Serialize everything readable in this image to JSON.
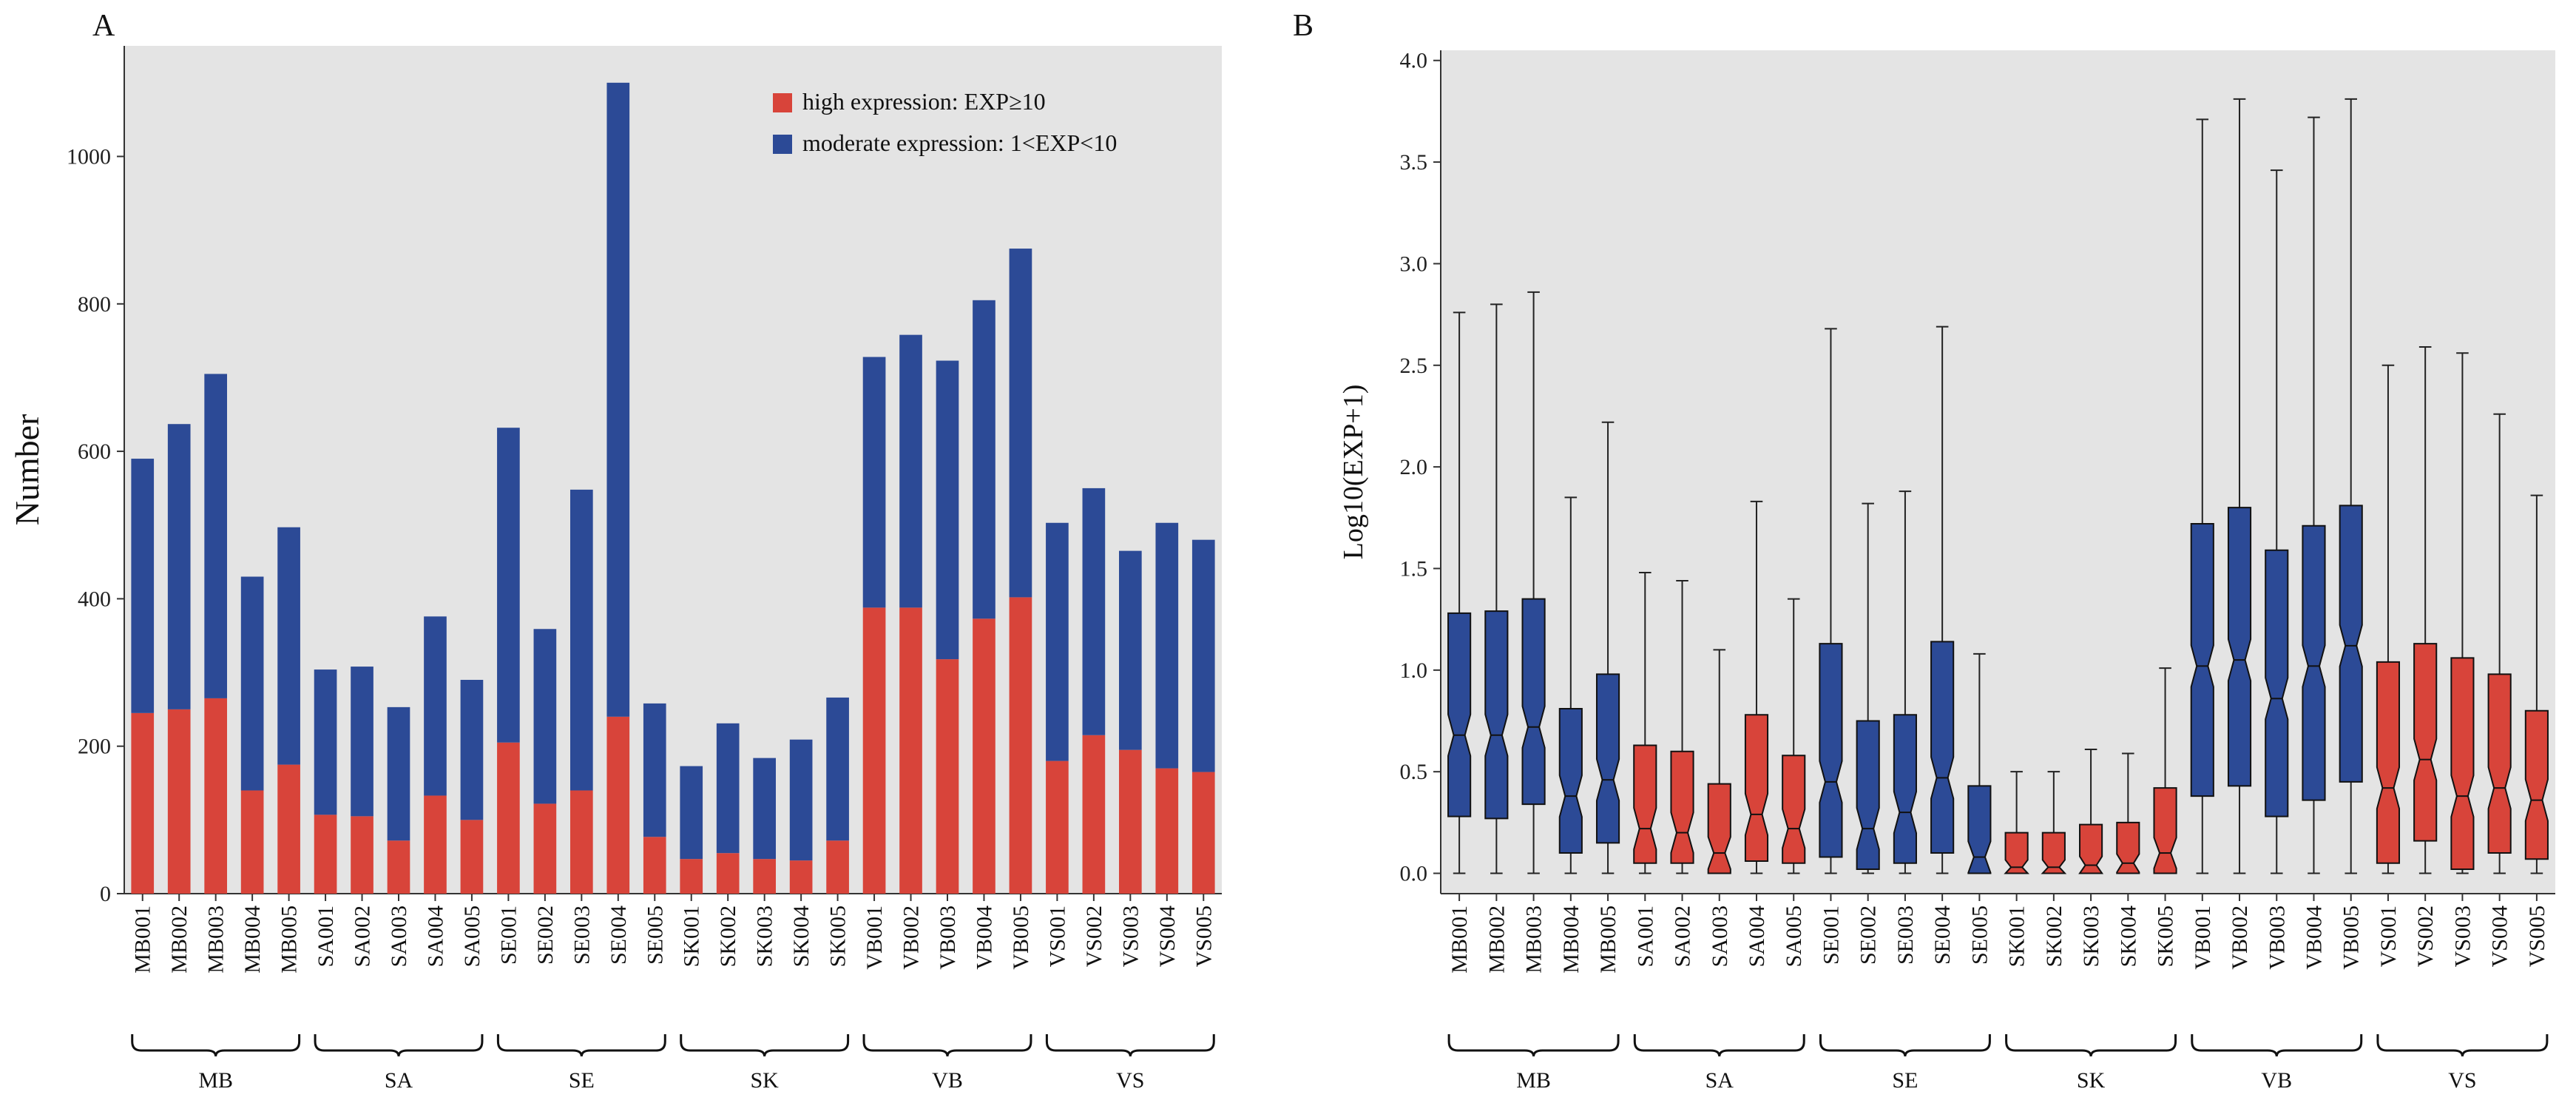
{
  "chart_data": [
    {
      "panel": "A",
      "type": "bar",
      "stacked": true,
      "ylabel": "Number",
      "xlabel": "",
      "ylim": [
        0,
        1150
      ],
      "yticks": [
        0,
        200,
        400,
        600,
        800,
        1000
      ],
      "grid": false,
      "legend_position": "top-right",
      "categories": [
        "MB001",
        "MB002",
        "MB003",
        "MB004",
        "MB005",
        "SA001",
        "SA002",
        "SA003",
        "SA004",
        "SA005",
        "SE001",
        "SE002",
        "SE003",
        "SE004",
        "SE005",
        "SK001",
        "SK002",
        "SK003",
        "SK004",
        "SK005",
        "VB001",
        "VB002",
        "VB003",
        "VB004",
        "VB005",
        "VS001",
        "VS002",
        "VS003",
        "VS004",
        "VS005"
      ],
      "groups": [
        {
          "label": "MB",
          "size": 5
        },
        {
          "label": "SA",
          "size": 5
        },
        {
          "label": "SE",
          "size": 5
        },
        {
          "label": "SK",
          "size": 5
        },
        {
          "label": "VB",
          "size": 5
        },
        {
          "label": "VS",
          "size": 5
        }
      ],
      "series": [
        {
          "name": "high expression: EXP≥10",
          "color": "#d8443a",
          "values": [
            245,
            250,
            265,
            140,
            175,
            107,
            105,
            72,
            133,
            100,
            205,
            122,
            140,
            240,
            77,
            47,
            55,
            47,
            45,
            72,
            388,
            388,
            318,
            373,
            402,
            180,
            215,
            195,
            170,
            165
          ]
        },
        {
          "name": "moderate expression: 1<EXP<10",
          "color": "#2c4a96",
          "values": [
            345,
            387,
            440,
            290,
            322,
            197,
            203,
            181,
            243,
            190,
            427,
            237,
            408,
            860,
            181,
            126,
            176,
            137,
            164,
            194,
            340,
            370,
            405,
            432,
            473,
            323,
            335,
            270,
            333,
            315
          ]
        }
      ]
    },
    {
      "panel": "B",
      "type": "box",
      "ylabel": "Log10(EXP+1)",
      "xlabel": "",
      "ylim": [
        -0.1,
        4.05
      ],
      "yticks": [
        0.0,
        0.5,
        1.0,
        1.5,
        2.0,
        2.5,
        3.0,
        3.5,
        4.0
      ],
      "ytick_labels": [
        "0.0",
        "0.5",
        "1.0",
        "1.5",
        "2.0",
        "2.5",
        "3.0",
        "3.5",
        "4.0"
      ],
      "grid": false,
      "categories": [
        "MB001",
        "MB002",
        "MB003",
        "MB004",
        "MB005",
        "SA001",
        "SA002",
        "SA003",
        "SA004",
        "SA005",
        "SE001",
        "SE002",
        "SE003",
        "SE004",
        "SE005",
        "SK001",
        "SK002",
        "SK003",
        "SK004",
        "SK005",
        "VB001",
        "VB002",
        "VB003",
        "VB004",
        "VB005",
        "VS001",
        "VS002",
        "VS003",
        "VS004",
        "VS005"
      ],
      "groups": [
        {
          "label": "MB",
          "size": 5
        },
        {
          "label": "SA",
          "size": 5
        },
        {
          "label": "SE",
          "size": 5
        },
        {
          "label": "SK",
          "size": 5
        },
        {
          "label": "VB",
          "size": 5
        },
        {
          "label": "VS",
          "size": 5
        }
      ],
      "group_colors": [
        "#2c4a96",
        "#d8443a",
        "#2c4a96",
        "#d8443a",
        "#2c4a96",
        "#d8443a"
      ],
      "boxes": [
        {
          "min": 0,
          "q1": 0.28,
          "median": 0.68,
          "q3": 1.28,
          "max": 2.76
        },
        {
          "min": 0,
          "q1": 0.27,
          "median": 0.68,
          "q3": 1.29,
          "max": 2.8
        },
        {
          "min": 0,
          "q1": 0.34,
          "median": 0.72,
          "q3": 1.35,
          "max": 2.86
        },
        {
          "min": 0,
          "q1": 0.1,
          "median": 0.38,
          "q3": 0.81,
          "max": 1.85
        },
        {
          "min": 0,
          "q1": 0.15,
          "median": 0.46,
          "q3": 0.98,
          "max": 2.22
        },
        {
          "min": 0,
          "q1": 0.05,
          "median": 0.22,
          "q3": 0.63,
          "max": 1.48
        },
        {
          "min": 0,
          "q1": 0.05,
          "median": 0.2,
          "q3": 0.6,
          "max": 1.44
        },
        {
          "min": 0,
          "q1": 0.0,
          "median": 0.1,
          "q3": 0.44,
          "max": 1.1
        },
        {
          "min": 0,
          "q1": 0.06,
          "median": 0.29,
          "q3": 0.78,
          "max": 1.83
        },
        {
          "min": 0,
          "q1": 0.05,
          "median": 0.22,
          "q3": 0.58,
          "max": 1.35
        },
        {
          "min": 0,
          "q1": 0.08,
          "median": 0.45,
          "q3": 1.13,
          "max": 2.68
        },
        {
          "min": 0,
          "q1": 0.02,
          "median": 0.22,
          "q3": 0.75,
          "max": 1.82
        },
        {
          "min": 0,
          "q1": 0.05,
          "median": 0.3,
          "q3": 0.78,
          "max": 1.88
        },
        {
          "min": 0,
          "q1": 0.1,
          "median": 0.47,
          "q3": 1.14,
          "max": 2.69
        },
        {
          "min": 0,
          "q1": 0.0,
          "median": 0.08,
          "q3": 0.43,
          "max": 1.08
        },
        {
          "min": 0,
          "q1": 0.0,
          "median": 0.03,
          "q3": 0.2,
          "max": 0.5
        },
        {
          "min": 0,
          "q1": 0.0,
          "median": 0.03,
          "q3": 0.2,
          "max": 0.5
        },
        {
          "min": 0,
          "q1": 0.0,
          "median": 0.04,
          "q3": 0.24,
          "max": 0.61
        },
        {
          "min": 0,
          "q1": 0.0,
          "median": 0.05,
          "q3": 0.25,
          "max": 0.59
        },
        {
          "min": 0,
          "q1": 0.0,
          "median": 0.1,
          "q3": 0.42,
          "max": 1.01
        },
        {
          "min": 0,
          "q1": 0.38,
          "median": 1.02,
          "q3": 1.72,
          "max": 3.71
        },
        {
          "min": 0,
          "q1": 0.43,
          "median": 1.05,
          "q3": 1.8,
          "max": 3.81
        },
        {
          "min": 0,
          "q1": 0.28,
          "median": 0.86,
          "q3": 1.59,
          "max": 3.46
        },
        {
          "min": 0,
          "q1": 0.36,
          "median": 1.02,
          "q3": 1.71,
          "max": 3.72
        },
        {
          "min": 0,
          "q1": 0.45,
          "median": 1.12,
          "q3": 1.81,
          "max": 3.81
        },
        {
          "min": 0,
          "q1": 0.05,
          "median": 0.42,
          "q3": 1.04,
          "max": 2.5
        },
        {
          "min": 0,
          "q1": 0.16,
          "median": 0.56,
          "q3": 1.13,
          "max": 2.59
        },
        {
          "min": 0,
          "q1": 0.02,
          "median": 0.38,
          "q3": 1.06,
          "max": 2.56
        },
        {
          "min": 0,
          "q1": 0.1,
          "median": 0.42,
          "q3": 0.98,
          "max": 2.26
        },
        {
          "min": 0,
          "q1": 0.07,
          "median": 0.36,
          "q3": 0.8,
          "max": 1.86
        }
      ]
    }
  ]
}
